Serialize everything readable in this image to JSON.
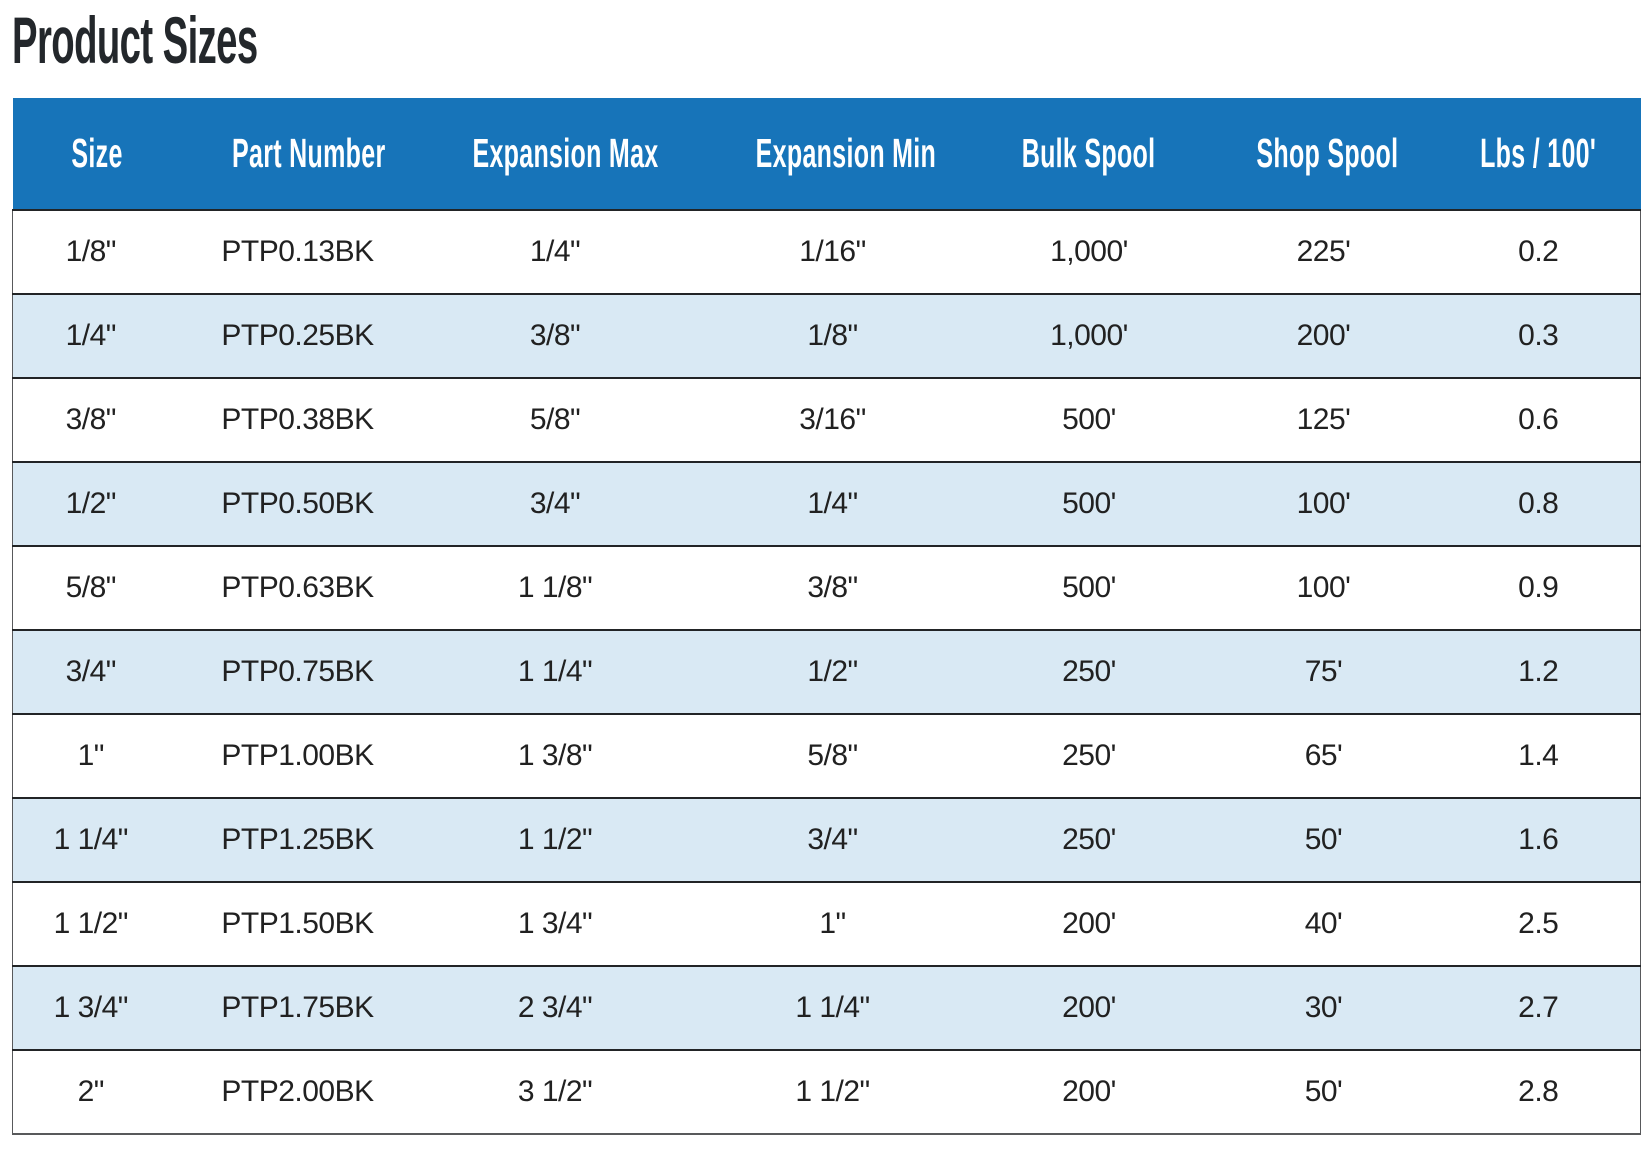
{
  "page": {
    "title": "Product Sizes"
  },
  "colors": {
    "header_bg": "#1774b9",
    "header_text": "#ffffff",
    "row_bg": "#ffffff",
    "row_alt_bg": "#d9e9f4",
    "border_dark": "#222426",
    "border_side": "#58595b",
    "title_color": "#23272b",
    "body_text": "#212121"
  },
  "table": {
    "columns": [
      {
        "key": "size",
        "label": "Size"
      },
      {
        "key": "part_number",
        "label": "Part Number"
      },
      {
        "key": "expansion_max",
        "label": "Expansion Max"
      },
      {
        "key": "expansion_min",
        "label": "Expansion Min"
      },
      {
        "key": "bulk_spool",
        "label": "Bulk Spool"
      },
      {
        "key": "shop_spool",
        "label": "Shop Spool"
      },
      {
        "key": "lbs_per_100",
        "label": "Lbs / 100'"
      }
    ],
    "rows": [
      {
        "size": "1/8\"",
        "part_number": "PTP0.13BK",
        "expansion_max": "1/4\"",
        "expansion_min": "1/16\"",
        "bulk_spool": "1,000'",
        "shop_spool": "225'",
        "lbs_per_100": "0.2"
      },
      {
        "size": "1/4\"",
        "part_number": "PTP0.25BK",
        "expansion_max": "3/8\"",
        "expansion_min": "1/8\"",
        "bulk_spool": "1,000'",
        "shop_spool": "200'",
        "lbs_per_100": "0.3"
      },
      {
        "size": "3/8\"",
        "part_number": "PTP0.38BK",
        "expansion_max": "5/8\"",
        "expansion_min": "3/16\"",
        "bulk_spool": "500'",
        "shop_spool": "125'",
        "lbs_per_100": "0.6"
      },
      {
        "size": "1/2\"",
        "part_number": "PTP0.50BK",
        "expansion_max": "3/4\"",
        "expansion_min": "1/4\"",
        "bulk_spool": "500'",
        "shop_spool": "100'",
        "lbs_per_100": "0.8"
      },
      {
        "size": "5/8\"",
        "part_number": "PTP0.63BK",
        "expansion_max": "1 1/8\"",
        "expansion_min": "3/8\"",
        "bulk_spool": "500'",
        "shop_spool": "100'",
        "lbs_per_100": "0.9"
      },
      {
        "size": "3/4\"",
        "part_number": "PTP0.75BK",
        "expansion_max": "1 1/4\"",
        "expansion_min": "1/2\"",
        "bulk_spool": "250'",
        "shop_spool": "75'",
        "lbs_per_100": "1.2"
      },
      {
        "size": "1\"",
        "part_number": "PTP1.00BK",
        "expansion_max": "1 3/8\"",
        "expansion_min": "5/8\"",
        "bulk_spool": "250'",
        "shop_spool": "65'",
        "lbs_per_100": "1.4"
      },
      {
        "size": "1 1/4\"",
        "part_number": "PTP1.25BK",
        "expansion_max": "1 1/2\"",
        "expansion_min": "3/4\"",
        "bulk_spool": "250'",
        "shop_spool": "50'",
        "lbs_per_100": "1.6"
      },
      {
        "size": "1 1/2\"",
        "part_number": "PTP1.50BK",
        "expansion_max": "1 3/4\"",
        "expansion_min": "1\"",
        "bulk_spool": "200'",
        "shop_spool": "40'",
        "lbs_per_100": "2.5"
      },
      {
        "size": "1 3/4\"",
        "part_number": "PTP1.75BK",
        "expansion_max": "2 3/4\"",
        "expansion_min": "1 1/4\"",
        "bulk_spool": "200'",
        "shop_spool": "30'",
        "lbs_per_100": "2.7"
      },
      {
        "size": "2\"",
        "part_number": "PTP2.00BK",
        "expansion_max": "3 1/2\"",
        "expansion_min": "1 1/2\"",
        "bulk_spool": "200'",
        "shop_spool": "50'",
        "lbs_per_100": "2.8"
      }
    ]
  }
}
